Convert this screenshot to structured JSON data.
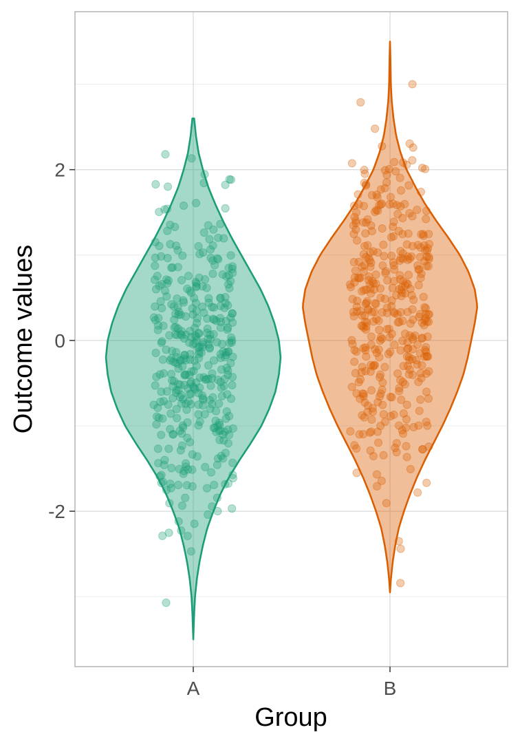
{
  "chart_data": {
    "type": "violin",
    "xlabel": "Group",
    "ylabel": "Outcome values",
    "categories": [
      "A",
      "B"
    ],
    "ylim": [
      -3.82,
      3.85
    ],
    "y_ticks": [
      -2,
      0,
      2
    ],
    "y_tick_labels": [
      "-2",
      "0",
      "2"
    ],
    "grid": true,
    "legend": "none",
    "series": [
      {
        "category": "A",
        "color": "#1b9e77",
        "fill_opacity": 0.4,
        "range": [
          -3.5,
          2.6
        ],
        "density_profile": [
          [
            -3.5,
            0.0
          ],
          [
            -3.2,
            0.01
          ],
          [
            -3.0,
            0.02
          ],
          [
            -2.8,
            0.04
          ],
          [
            -2.6,
            0.07
          ],
          [
            -2.4,
            0.11
          ],
          [
            -2.2,
            0.16
          ],
          [
            -2.0,
            0.23
          ],
          [
            -1.8,
            0.31
          ],
          [
            -1.6,
            0.41
          ],
          [
            -1.4,
            0.53
          ],
          [
            -1.2,
            0.66
          ],
          [
            -1.0,
            0.78
          ],
          [
            -0.8,
            0.87
          ],
          [
            -0.6,
            0.94
          ],
          [
            -0.4,
            0.98
          ],
          [
            -0.2,
            1.0
          ],
          [
            0.0,
            0.98
          ],
          [
            0.2,
            0.93
          ],
          [
            0.4,
            0.86
          ],
          [
            0.6,
            0.77
          ],
          [
            0.8,
            0.66
          ],
          [
            1.0,
            0.55
          ],
          [
            1.2,
            0.44
          ],
          [
            1.4,
            0.34
          ],
          [
            1.6,
            0.25
          ],
          [
            1.8,
            0.17
          ],
          [
            2.0,
            0.11
          ],
          [
            2.2,
            0.06
          ],
          [
            2.4,
            0.03
          ],
          [
            2.6,
            0.01
          ]
        ],
        "n_points": 400,
        "points_seed": 11
      },
      {
        "category": "B",
        "color": "#d95f02",
        "fill_opacity": 0.4,
        "range": [
          -2.95,
          3.5
        ],
        "density_profile": [
          [
            -2.95,
            0.0
          ],
          [
            -2.8,
            0.01
          ],
          [
            -2.6,
            0.03
          ],
          [
            -2.4,
            0.06
          ],
          [
            -2.2,
            0.1
          ],
          [
            -2.0,
            0.16
          ],
          [
            -1.8,
            0.23
          ],
          [
            -1.6,
            0.31
          ],
          [
            -1.4,
            0.4
          ],
          [
            -1.2,
            0.5
          ],
          [
            -1.0,
            0.6
          ],
          [
            -0.8,
            0.69
          ],
          [
            -0.6,
            0.77
          ],
          [
            -0.4,
            0.84
          ],
          [
            -0.2,
            0.89
          ],
          [
            0.0,
            0.93
          ],
          [
            0.2,
            0.97
          ],
          [
            0.4,
            1.0
          ],
          [
            0.6,
            0.97
          ],
          [
            0.8,
            0.9
          ],
          [
            1.0,
            0.8
          ],
          [
            1.2,
            0.67
          ],
          [
            1.4,
            0.53
          ],
          [
            1.6,
            0.4
          ],
          [
            1.8,
            0.29
          ],
          [
            2.0,
            0.19
          ],
          [
            2.2,
            0.12
          ],
          [
            2.4,
            0.07
          ],
          [
            2.6,
            0.04
          ],
          [
            2.8,
            0.02
          ],
          [
            3.0,
            0.01
          ],
          [
            3.3,
            0.005
          ],
          [
            3.5,
            0.0
          ]
        ],
        "n_points": 400,
        "points_seed": 29
      }
    ]
  }
}
